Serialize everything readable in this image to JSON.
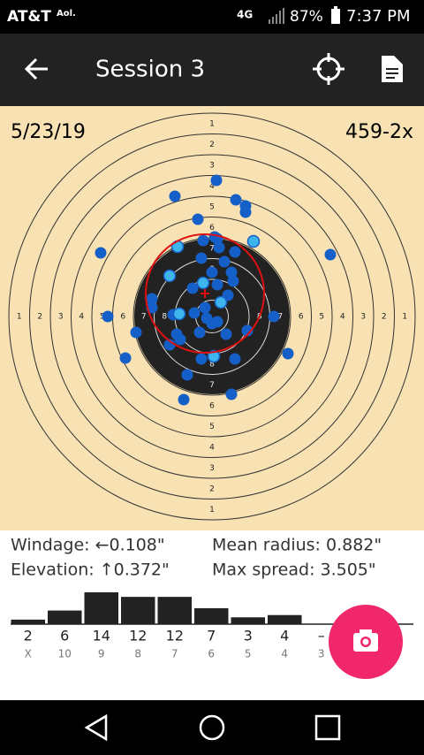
{
  "status_bar": {
    "carrier": "AT&T",
    "extra": "Aol.",
    "network": "4G",
    "battery": "87%",
    "time": "7:37 PM"
  },
  "app_bar": {
    "title": "Session 3"
  },
  "target": {
    "date": "5/23/19",
    "score": "459-2x",
    "ring_numbers": [
      1,
      2,
      3,
      4,
      5,
      6,
      7,
      8
    ]
  },
  "stats": {
    "windage": "Windage: ←0.108\"",
    "elevation": "Elevation: ↑0.372\"",
    "mean_radius": "Mean radius: 0.882\"",
    "max_spread": "Max spread: 3.505\""
  },
  "histogram": {
    "counts": [
      2,
      6,
      14,
      12,
      12,
      7,
      3,
      4,
      "–"
    ],
    "scores": [
      "X",
      10,
      9,
      8,
      7,
      6,
      5,
      4,
      3
    ]
  }
}
